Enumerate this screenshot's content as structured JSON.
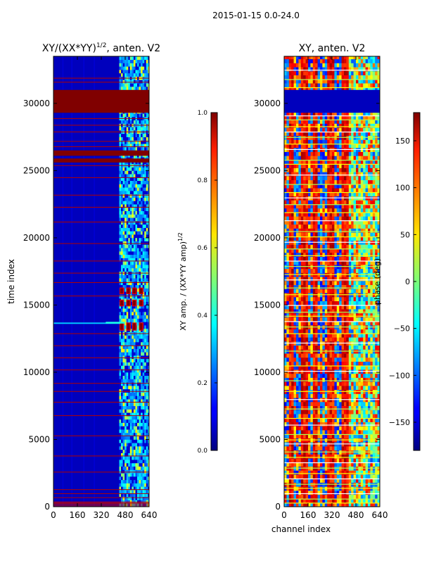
{
  "suptitle": "2015-01-15 0.0-24.0",
  "chart_data": [
    {
      "type": "heatmap",
      "title": "XY/(XX*YY)^{1/2}, anten. V2",
      "title_main": "XY/(XX*YY)",
      "title_exp": "1/2",
      "title_tail": ", anten. V2",
      "xlabel": "",
      "ylabel": "time index",
      "xlim": [
        0,
        640
      ],
      "ylim": [
        0,
        33500
      ],
      "xticks": [
        0,
        160,
        320,
        480,
        640
      ],
      "yticks": [
        0,
        5000,
        10000,
        15000,
        20000,
        25000,
        30000
      ],
      "colorbar": {
        "label": "XY amp. / (XX*YY amp)^{1/2}",
        "label_main": "XY amp. / (XX*YY amp)",
        "label_exp": "1/2",
        "range": [
          0.0,
          1.0
        ],
        "ticks": [
          "0.0",
          "0.2",
          "0.4",
          "0.6",
          "0.8",
          "1.0"
        ],
        "tick_values": [
          0.0,
          0.2,
          0.4,
          0.6,
          0.8,
          1.0
        ]
      },
      "saturated_bands": [
        [
          29300,
          31000
        ],
        [
          26100,
          26500
        ],
        [
          25600,
          25900
        ]
      ],
      "horizontal_lines": [
        31900,
        31600,
        28900,
        28400,
        27900,
        27200,
        26800,
        25400,
        24500,
        23200,
        22300,
        21200,
        19600,
        18300,
        17400,
        16700,
        15700,
        12900,
        12000,
        11100,
        10200,
        9200,
        8600,
        7800,
        6800,
        5300,
        3800,
        2600,
        1300,
        1000,
        700,
        300
      ],
      "high_value_blocks": {
        "x_channels": [
          460,
          505,
          545,
          590
        ],
        "y_ranges": [
          [
            15800,
            16300
          ],
          [
            14900,
            15400
          ],
          [
            13100,
            13700
          ],
          [
            29300,
            29500
          ]
        ]
      }
    },
    {
      "type": "heatmap",
      "title": "XY, anten. V2",
      "xlabel": "channel index",
      "ylabel": "",
      "xlim": [
        0,
        640
      ],
      "ylim": [
        0,
        33500
      ],
      "xticks": [
        0,
        160,
        320,
        480,
        640
      ],
      "yticks": [
        0,
        5000,
        10000,
        15000,
        20000,
        25000,
        30000
      ],
      "colorbar": {
        "label": "phase (deg)",
        "range": [
          -180,
          180
        ],
        "ticks": [
          "−150",
          "−100",
          "−50",
          "0",
          "50",
          "100",
          "150"
        ],
        "tick_values": [
          -150,
          -100,
          -50,
          0,
          50,
          100,
          150
        ]
      },
      "low_band": [
        29300,
        31000
      ],
      "stripe_channels": [
        40,
        130,
        200,
        300,
        400
      ],
      "horizontal_lines": [
        32500,
        31800,
        31200,
        29100,
        28800,
        28300,
        27900,
        27500,
        27000,
        26600,
        25800,
        25500,
        24700,
        24000,
        23400,
        23000,
        22500,
        21900,
        21300,
        20500,
        20100,
        19700,
        19200,
        18700,
        18300,
        17900,
        17300,
        16900,
        16300,
        15800,
        15000,
        14500,
        14200,
        13800,
        13400,
        12900,
        12200,
        11600,
        10500,
        10100,
        9400,
        8600,
        8000,
        7300,
        6600,
        6100,
        5400,
        5000,
        4700,
        4100,
        3700,
        3300,
        2900,
        2500,
        2100,
        1700,
        1400,
        1000,
        600,
        300
      ]
    }
  ]
}
